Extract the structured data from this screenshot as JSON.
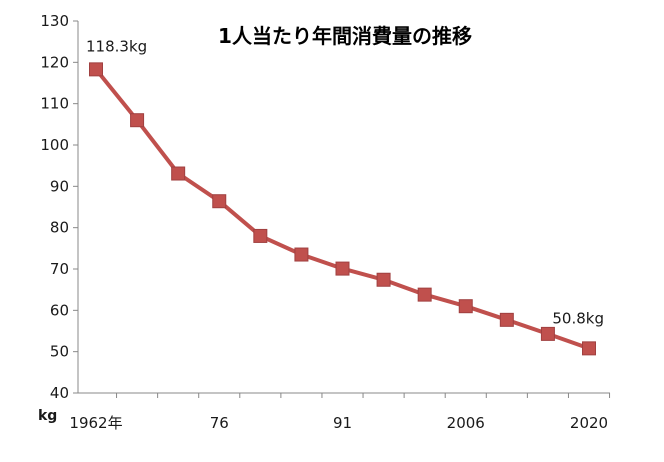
{
  "chart_data": {
    "type": "line",
    "title": "1人当たり年間消費量の推移",
    "ylabel": "kg",
    "xlabel": "",
    "ylim": [
      40,
      130
    ],
    "yticks": [
      40,
      50,
      60,
      70,
      80,
      90,
      100,
      110,
      120,
      130
    ],
    "x_tick_labels": [
      {
        "index": 0,
        "label": "1962年"
      },
      {
        "index": 3,
        "label": "76"
      },
      {
        "index": 6,
        "label": "91"
      },
      {
        "index": 9,
        "label": "2006"
      },
      {
        "index": 12,
        "label": "2020"
      }
    ],
    "series": [
      {
        "values": [
          118.3,
          106.0,
          93.1,
          86.4,
          78.0,
          73.5,
          70.1,
          67.4,
          63.8,
          61.0,
          57.7,
          54.3,
          50.8
        ]
      }
    ],
    "annotations": [
      {
        "index": 0,
        "text": "118.3kg"
      },
      {
        "index": 12,
        "text": "50.8kg"
      }
    ],
    "grid": false,
    "legend": "none",
    "colors": {
      "line": "#c0504d",
      "marker_fill": "#c0504d",
      "marker_stroke": "#a04040",
      "axis": "#888888"
    }
  }
}
